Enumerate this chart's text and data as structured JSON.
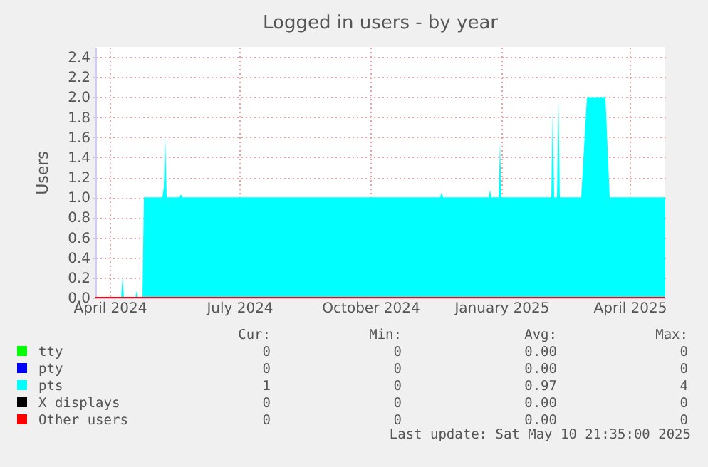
{
  "chart_data": {
    "type": "area",
    "title": "Logged in users - by year",
    "ylabel": "Users",
    "xlim": [
      "2024-04-05",
      "2025-05-10"
    ],
    "xticks": [
      {
        "value": "2024-04-15",
        "label": "April 2024"
      },
      {
        "value": "2024-07-15",
        "label": "July 2024"
      },
      {
        "value": "2024-10-15",
        "label": "October 2024"
      },
      {
        "value": "2025-01-15",
        "label": "January 2025"
      },
      {
        "value": "2025-04-15",
        "label": "April 2025"
      }
    ],
    "ylim": [
      0,
      2.5
    ],
    "yticks": [
      {
        "value": 0,
        "label": "0.0"
      },
      0.2,
      0.4,
      0.6,
      0.8,
      {
        "value": 1,
        "label": "1.0"
      },
      1.2,
      1.4,
      1.6,
      1.8,
      {
        "value": 2,
        "label": "2.0"
      },
      2.2,
      2.4
    ],
    "grid": true,
    "legend": "bottom",
    "series": [
      {
        "name": "tty",
        "color": "#00ff00",
        "type": "line"
      },
      {
        "name": "pty",
        "color": "#0000ff",
        "type": "line"
      },
      {
        "name": "pts",
        "color": "#00ffff",
        "x": [
          "2024-04-05",
          "2024-04-23",
          "2024-04-24",
          "2024-04-25",
          "2024-05-03",
          "2024-05-04",
          "2024-05-05",
          "2024-05-08",
          "2024-05-09",
          "2024-05-22",
          "2024-05-23",
          "2024-05-24",
          "2024-05-25",
          "2024-06-03",
          "2024-06-04",
          "2024-06-05",
          "2024-12-03",
          "2024-12-04",
          "2024-12-05",
          "2025-01-06",
          "2025-01-07",
          "2025-01-08",
          "2025-01-13",
          "2025-01-14",
          "2025-01-15",
          "2025-02-19",
          "2025-02-20",
          "2025-02-21",
          "2025-02-23",
          "2025-02-24",
          "2025-02-25",
          "2025-03-12",
          "2025-03-16",
          "2025-03-29",
          "2025-04-01",
          "2025-05-10"
        ],
        "values": [
          0,
          0,
          0.2,
          0,
          0,
          0.07,
          0,
          0,
          1,
          1,
          1.1,
          1.6,
          1,
          1,
          1.03,
          1,
          1,
          1.05,
          1,
          1,
          1.07,
          1,
          1,
          1.55,
          1,
          1,
          1.87,
          1,
          1,
          1.98,
          1,
          1,
          2,
          2,
          1,
          1
        ]
      },
      {
        "name": "X displays",
        "color": "#000000",
        "type": "line"
      },
      {
        "name": "Other users",
        "color": "#ff0000",
        "type": "line",
        "x": [
          "2024-04-05",
          "2025-05-10"
        ],
        "values": [
          0,
          0
        ]
      }
    ],
    "annotations": [
      "Cur:",
      "Min:",
      "Avg:",
      "Max:",
      "0",
      "0",
      "0.00",
      "0",
      "0",
      "0",
      "0.00",
      "0",
      "1",
      "0",
      "0.97",
      "4",
      "0",
      "0",
      "0.00",
      "0",
      "0",
      "0",
      "0.00",
      "0",
      "Last update: Sat May 10 21:35:00 2025"
    ]
  }
}
